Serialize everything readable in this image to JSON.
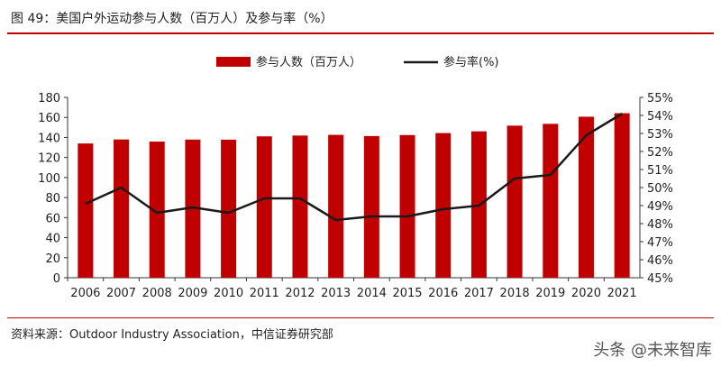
{
  "figure": {
    "title": "图 49：美国户外运动参与人数（百万人）及参与率（%）",
    "source": "资料来源：Outdoor Industry Association，中信证券研究部",
    "watermark": "头条 @未来智库"
  },
  "chart_data": {
    "type": "bar+line",
    "categories": [
      "2006",
      "2007",
      "2008",
      "2009",
      "2010",
      "2011",
      "2012",
      "2013",
      "2014",
      "2015",
      "2016",
      "2017",
      "2018",
      "2019",
      "2020",
      "2021"
    ],
    "series": [
      {
        "name": "参与人数（百万人）",
        "type": "bar",
        "axis": "left",
        "color": "#c00000",
        "values": [
          134,
          138,
          135.9,
          137.9,
          137.8,
          141.1,
          141.9,
          142.6,
          141.4,
          142.4,
          144.4,
          146.1,
          151.8,
          153.6,
          160.7,
          164.2
        ]
      },
      {
        "name": "参与率(%)",
        "type": "line",
        "axis": "right",
        "color": "#1a1a1a",
        "values": [
          49.1,
          50.0,
          48.6,
          48.9,
          48.6,
          49.4,
          49.4,
          48.2,
          48.4,
          48.4,
          48.8,
          49.0,
          50.5,
          50.7,
          52.9,
          54.1
        ]
      }
    ],
    "left_axis": {
      "min": 0,
      "max": 180,
      "step": 20,
      "ticks": [
        "0",
        "20",
        "40",
        "60",
        "80",
        "100",
        "120",
        "140",
        "160",
        "180"
      ]
    },
    "right_axis": {
      "min": 45,
      "max": 55,
      "step": 1,
      "ticks": [
        "45%",
        "46%",
        "47%",
        "48%",
        "49%",
        "50%",
        "51%",
        "52%",
        "53%",
        "54%",
        "55%"
      ]
    },
    "legend_position": "top-center",
    "grid": false
  }
}
